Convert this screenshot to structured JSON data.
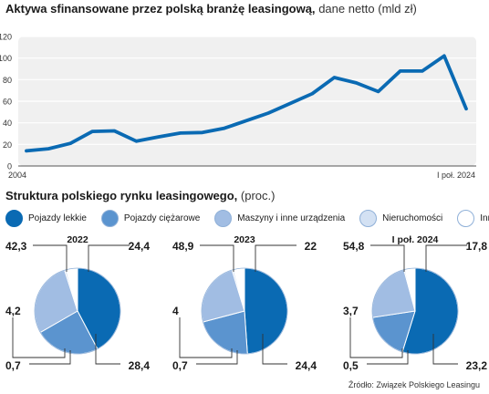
{
  "titles": {
    "line_main": "Aktywa sfinansowane przez polską branżę leasingową,",
    "line_sub": "dane netto (mld zł)",
    "pie_main": "Struktura polskiego rynku leasingowego,",
    "pie_sub": "(proc.)"
  },
  "source": "Źródło: Związek Polskiego Leasingu",
  "colors": {
    "line": "#0a6ab3",
    "bg_panel": "#f0f0f0",
    "categories": [
      "#0a6ab3",
      "#5b94cf",
      "#a1bde3",
      "#d3e1f3",
      "#ffffff"
    ]
  },
  "chart_data": [
    {
      "type": "line",
      "x_tick_labels": [
        "2004",
        "I poł. 2024"
      ],
      "ylim": [
        0,
        120
      ],
      "yticks": [
        0,
        20,
        40,
        60,
        80,
        100,
        120
      ],
      "grid": true,
      "series": [
        {
          "values": [
            14,
            16,
            21,
            32,
            32.5,
            23,
            27,
            30.5,
            31,
            35,
            42,
            49,
            58,
            67,
            82,
            77,
            69,
            88,
            88,
            102,
            53
          ]
        }
      ]
    },
    {
      "type": "pie",
      "legend": [
        "Pojazdy lekkie",
        "Pojazdy ciężarowe",
        "Maszyny i inne urządzenia",
        "Nieruchomości",
        "Inne"
      ],
      "legend_position": "top",
      "pies": [
        {
          "title": "2022",
          "values": [
            42.3,
            24.4,
            28.4,
            0.7,
            4.2
          ],
          "labels": [
            "42,3",
            "24,4",
            "28,4",
            "0,7",
            "4,2"
          ]
        },
        {
          "title": "2023",
          "values": [
            48.9,
            22,
            24.4,
            0.7,
            4
          ],
          "labels": [
            "48,9",
            "22",
            "24,4",
            "0,7",
            "4"
          ]
        },
        {
          "title": "I poł. 2024",
          "values": [
            54.8,
            17.8,
            23.2,
            0.5,
            3.7
          ],
          "labels": [
            "54,8",
            "17,8",
            "23,2",
            "0,5",
            "3,7"
          ]
        }
      ]
    }
  ]
}
